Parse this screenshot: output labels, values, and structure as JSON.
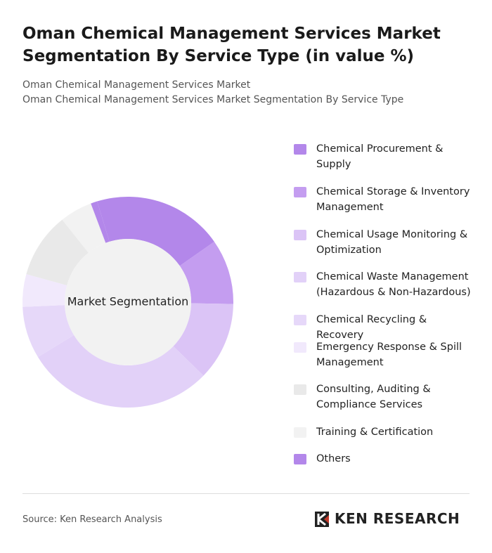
{
  "chart_data": {
    "type": "donut",
    "title": "Oman Chemical Management Services Market Segmentation By Service Type (in value %)",
    "subtitle": [
      "Oman Chemical Management Services Market",
      "Oman Chemical Management Services Market Segmentation By Service Type"
    ],
    "center_label": "Market Segmentation",
    "categories": [
      "Chemical Procurement & Supply",
      "Chemical Storage & Inventory Management",
      "Chemical Usage Monitoring & Optimization",
      "Chemical Waste Management (Hazardous & Non-Hazardous)",
      "Chemical Recycling & Recovery",
      "Emergency Response & Spill Management",
      "Consulting, Auditing & Compliance Services",
      "Training & Certification",
      "Others"
    ],
    "values": [
      20,
      10,
      12,
      29,
      8,
      5,
      10,
      5,
      1
    ],
    "colors": [
      "#b387ea",
      "#c49df0",
      "#dbc4f6",
      "#e2d1f8",
      "#e6d8f9",
      "#f1e9fc",
      "#e9e9e9",
      "#f2f2f2",
      "#b387ea"
    ],
    "source": "Source: Ken Research Analysis",
    "brand": "KEN RESEARCH"
  }
}
